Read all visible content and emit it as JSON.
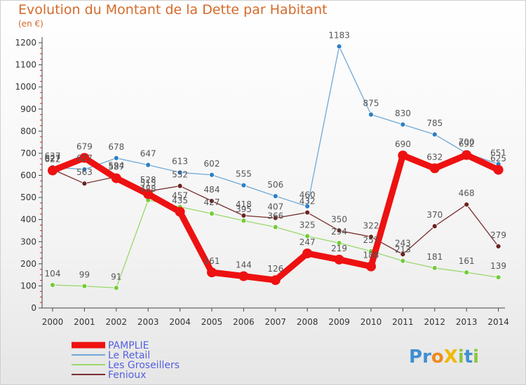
{
  "header": {
    "title": "Evolution du Montant de la Dette par Habitant",
    "subtitle": "(en €)"
  },
  "logo": {
    "text": "ProXiti"
  },
  "chart_data": {
    "type": "line",
    "title": "Evolution du Montant de la Dette par Habitant",
    "ylabel": "(en €)",
    "xlabel": "",
    "x": [
      "2000",
      "2001",
      "2002",
      "2003",
      "2004",
      "2005",
      "2006",
      "2007",
      "2008",
      "2009",
      "2010",
      "2011",
      "2012",
      "2013",
      "2014"
    ],
    "ylim": [
      0,
      1200
    ],
    "yticks": [
      0,
      100,
      200,
      300,
      400,
      500,
      600,
      700,
      800,
      900,
      1000,
      1100,
      1200
    ],
    "grid": false,
    "legend": "bottom-left",
    "series": [
      {
        "name": "Le Retail",
        "color": "#6fa8d6",
        "marker": "#2e7fc4",
        "values": [
          637,
          627,
          678,
          647,
          613,
          602,
          555,
          506,
          460,
          1183,
          875,
          830,
          785,
          700,
          651
        ]
      },
      {
        "name": "Les Groseillers",
        "color": "#98d86a",
        "marker": "#74cc3c",
        "values": [
          104,
          99,
          91,
          488,
          457,
          427,
          395,
          366,
          325,
          294,
          257,
          213,
          181,
          161,
          139
        ]
      },
      {
        "name": "Fenioux",
        "color": "#7a2e2e",
        "marker": "#6b2222",
        "values": [
          627,
          563,
          594,
          528,
          552,
          484,
          418,
          407,
          432,
          350,
          322,
          243,
          370,
          468,
          279
        ]
      },
      {
        "name": "PAMPLIE",
        "color": "#ee1111",
        "marker": "#ee1111",
        "values": [
          622,
          679,
          587,
          515,
          435,
          161,
          144,
          126,
          247,
          219,
          188,
          690,
          632,
          692,
          625
        ]
      }
    ]
  }
}
